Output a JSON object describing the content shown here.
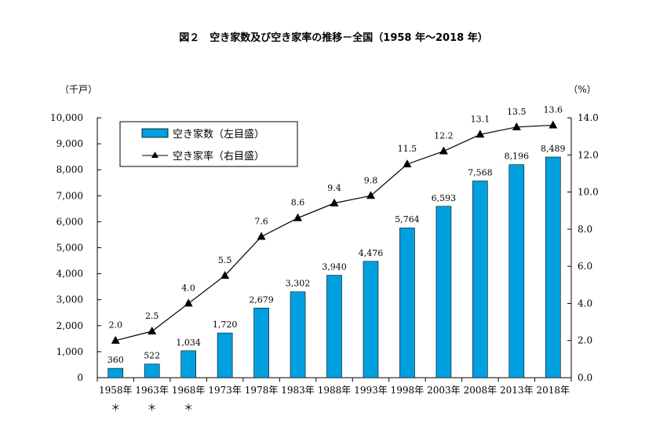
{
  "chart_data": {
    "type": "bar+line",
    "title": "図２　空き家数及び空き家率の推移－全国（1958 年～2018 年）",
    "categories": [
      "1958年",
      "1963年",
      "1968年",
      "1973年",
      "1978年",
      "1983年",
      "1988年",
      "1993年",
      "1998年",
      "2003年",
      "2008年",
      "2013年",
      "2018年"
    ],
    "category_marks": [
      "＊",
      "＊",
      "＊",
      "",
      "",
      "",
      "",
      "",
      "",
      "",
      "",
      "",
      ""
    ],
    "left_axis": {
      "unit": "（千戸）",
      "ylim": [
        0,
        10000
      ],
      "ticks": [
        "0",
        "1,000",
        "2,000",
        "3,000",
        "4,000",
        "5,000",
        "6,000",
        "7,000",
        "8,000",
        "9,000",
        "10,000"
      ]
    },
    "right_axis": {
      "unit": "（%）",
      "ylim": [
        0,
        14
      ],
      "ticks": [
        "0.0",
        "2.0",
        "4.0",
        "6.0",
        "8.0",
        "10.0",
        "12.0",
        "14.0"
      ]
    },
    "series": [
      {
        "name": "空き家数（左目盛）",
        "type": "bar",
        "axis": "left",
        "color": "#00a0e0",
        "values": [
          360,
          522,
          1034,
          1720,
          2679,
          3302,
          3940,
          4476,
          5764,
          6593,
          7568,
          8196,
          8489
        ],
        "labels": [
          "360",
          "522",
          "1,034",
          "1,720",
          "2,679",
          "3,302",
          "3,940",
          "4,476",
          "5,764",
          "6,593",
          "7,568",
          "8,196",
          "8,489"
        ]
      },
      {
        "name": "空き家率（右目盛）",
        "type": "line",
        "axis": "right",
        "color": "#000000",
        "marker": "triangle",
        "values": [
          2.0,
          2.5,
          4.0,
          5.5,
          7.6,
          8.6,
          9.4,
          9.8,
          11.5,
          12.2,
          13.1,
          13.5,
          13.6
        ],
        "labels": [
          "2.0",
          "2.5",
          "4.0",
          "5.5",
          "7.6",
          "8.6",
          "9.4",
          "9.8",
          "11.5",
          "12.2",
          "13.1",
          "13.5",
          "13.6"
        ]
      }
    ],
    "legend_position": "top-left",
    "grid": false
  }
}
